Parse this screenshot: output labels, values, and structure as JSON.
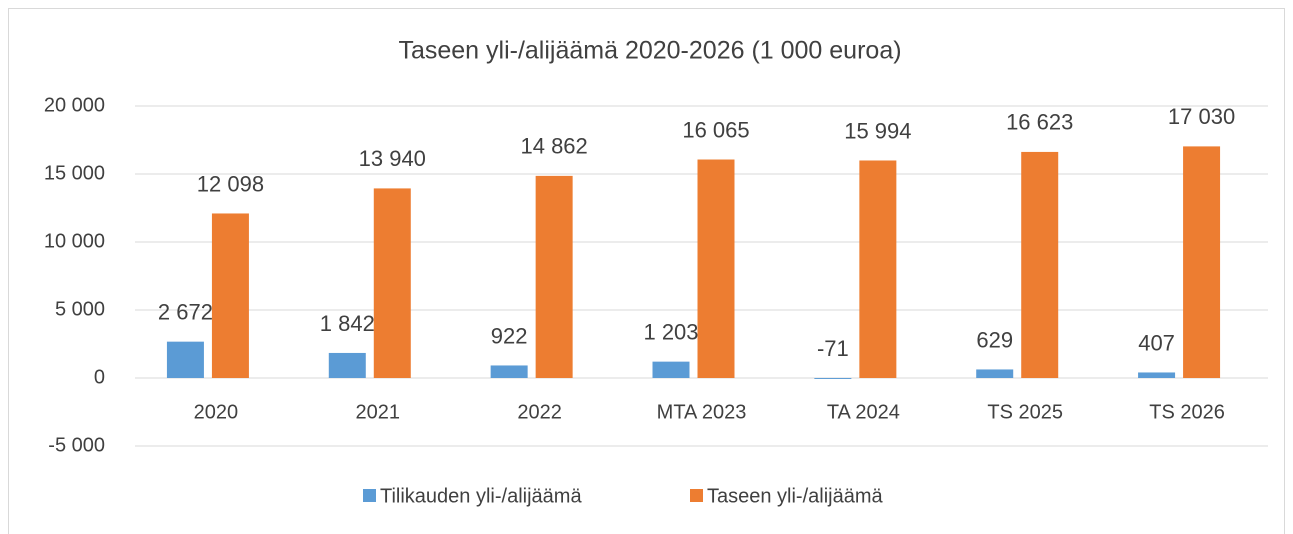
{
  "chart_data": {
    "type": "bar",
    "title": "Taseen yli-/alijäämä 2020-2026 (1 000 euroa)",
    "categories": [
      "2020",
      "2021",
      "2022",
      "MTA 2023",
      "TA 2024",
      "TS 2025",
      "TS 2026"
    ],
    "series": [
      {
        "name": "Tilikauden yli-/alijäämä",
        "color": "#5b9bd5",
        "values": [
          2672,
          1842,
          922,
          1203,
          -71,
          629,
          407
        ],
        "value_labels": [
          "2 672",
          "1 842",
          "922",
          "1 203",
          "-71",
          "629",
          "407"
        ]
      },
      {
        "name": "Taseen yli-/alijäämä",
        "color": "#ed7d31",
        "values": [
          12098,
          13940,
          14862,
          16065,
          15994,
          16623,
          17030
        ],
        "value_labels": [
          "12 098",
          "13 940",
          "14 862",
          "16 065",
          "15 994",
          "16 623",
          "17 030"
        ]
      }
    ],
    "ylim": [
      -5000,
      20000
    ],
    "yticks": [
      {
        "value": -5000,
        "label": "-5 000"
      },
      0,
      {
        "value": 5000,
        "label": "5 000"
      },
      {
        "value": 10000,
        "label": "10 000"
      },
      {
        "value": 15000,
        "label": "15 000"
      },
      {
        "value": 20000,
        "label": "20 000"
      }
    ],
    "grid": true,
    "legend": "bottom"
  }
}
